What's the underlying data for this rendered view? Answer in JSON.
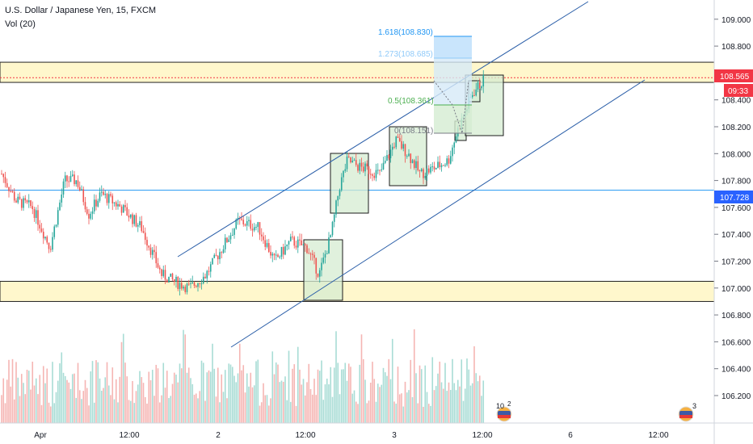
{
  "header": {
    "symbol_title": "U.S. Dollar / Japanese Yen, 15, FXCM",
    "volume_label": "Vol (20)"
  },
  "chart_data": {
    "type": "candlestick",
    "price_axis": {
      "ticks": [
        106.2,
        106.4,
        106.6,
        106.8,
        107.0,
        107.2,
        107.4,
        107.6,
        107.8,
        108.0,
        108.2,
        108.4,
        108.6,
        108.8,
        109.0
      ],
      "tick_labels": [
        "106.200",
        "106.400",
        "106.600",
        "106.800",
        "107.000",
        "107.200",
        "107.400",
        "107.600",
        "107.800",
        "108.000",
        "108.200",
        "108.400",
        "108.600",
        "108.800",
        "109.000"
      ],
      "range": [
        106.15,
        109.05
      ]
    },
    "time_axis": {
      "labels": [
        "Apr",
        "12:00",
        "2",
        "12:00",
        "3",
        "12:00",
        "6",
        "12:00"
      ]
    },
    "price_badges": [
      {
        "price": 108.565,
        "label": "108.565",
        "color": "#f23645"
      },
      {
        "label": "09:33",
        "color": "#f23645"
      },
      {
        "price": 107.728,
        "label": "107.728",
        "color": "#2962ff"
      }
    ],
    "horizontal_lines": [
      {
        "price": 107.728,
        "color": "#2196f3",
        "style": "solid"
      },
      {
        "price": 108.565,
        "color": "#f23645",
        "style": "dotted"
      }
    ],
    "zones": [
      {
        "from": 108.53,
        "to": 108.68,
        "color": "#fff7cc"
      },
      {
        "from": 106.9,
        "to": 107.05,
        "color": "#fff7cc"
      }
    ],
    "fibonacci": [
      {
        "label": "1.618(108.830)",
        "color": "#2196f3"
      },
      {
        "label": "1.273(108.685)",
        "color": "#90caf9"
      },
      {
        "label": "0.5(108.361)",
        "color": "#4caf50"
      },
      {
        "label": "0(108.151)",
        "color": "#787b86"
      }
    ],
    "event_markers": [
      {
        "label": "10",
        "superscript": "2"
      },
      {
        "label": "3"
      }
    ],
    "colors": {
      "up": "#26a69a",
      "down": "#ef5350",
      "channel": "#2a5ea8",
      "box_fill": "#d6ecd2",
      "box_stroke": "#1b1b1b"
    }
  }
}
